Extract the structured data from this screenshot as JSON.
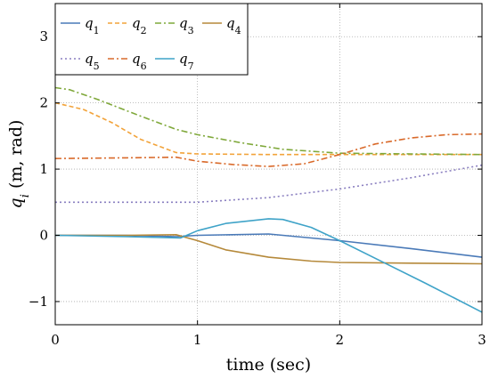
{
  "chart_data": {
    "type": "line",
    "title": "",
    "xlabel": "time (sec)",
    "ylabel": "q_i (m, rad)",
    "ylabel_main": "q",
    "ylabel_sub": "i",
    "ylabel_rest": " (m, rad)",
    "xlim": [
      0,
      3
    ],
    "ylim": [
      -1.35,
      3.5
    ],
    "x_ticks": [
      0,
      1,
      2,
      3
    ],
    "y_ticks": [
      -1,
      0,
      1,
      2,
      3
    ],
    "x_tick_labels": [
      "0",
      "1",
      "2",
      "3"
    ],
    "y_tick_labels": [
      "−1",
      "0",
      "1",
      "2",
      "3"
    ],
    "grid": "dotted",
    "legend_position": "top-left",
    "series": [
      {
        "name": "q1",
        "label_main": "q",
        "label_sub": "1",
        "color": "#4a7ab8",
        "dash": "solid",
        "x": [
          0,
          0.5,
          0.85,
          1.0,
          1.5,
          2.0,
          2.5,
          3.0
        ],
        "y": [
          0,
          0,
          -0.02,
          0.0,
          0.02,
          -0.08,
          -0.2,
          -0.33
        ]
      },
      {
        "name": "q2",
        "label_main": "q",
        "label_sub": "2",
        "color": "#f2a33a",
        "dash": "dashed",
        "x": [
          0,
          0.2,
          0.4,
          0.6,
          0.85,
          1.0,
          1.5,
          2.0,
          2.5,
          3.0
        ],
        "y": [
          2.0,
          1.9,
          1.7,
          1.45,
          1.25,
          1.23,
          1.22,
          1.22,
          1.22,
          1.22
        ]
      },
      {
        "name": "q3",
        "label_main": "q",
        "label_sub": "3",
        "color": "#7fa83a",
        "dash": "dashdot",
        "x": [
          0,
          0.1,
          0.3,
          0.6,
          0.85,
          1.0,
          1.3,
          1.6,
          2.0,
          2.5,
          3.0
        ],
        "y": [
          2.23,
          2.2,
          2.05,
          1.8,
          1.6,
          1.52,
          1.4,
          1.3,
          1.24,
          1.23,
          1.22
        ]
      },
      {
        "name": "q4",
        "label_main": "q",
        "label_sub": "4",
        "color": "#b5893a",
        "dash": "solid",
        "x": [
          0,
          0.5,
          0.85,
          1.0,
          1.2,
          1.5,
          1.8,
          2.0,
          2.5,
          3.0
        ],
        "y": [
          0,
          0,
          0.01,
          -0.08,
          -0.22,
          -0.33,
          -0.39,
          -0.41,
          -0.42,
          -0.43
        ]
      },
      {
        "name": "q5",
        "label_main": "q",
        "label_sub": "5",
        "color": "#8a7fc0",
        "dash": "dotted",
        "x": [
          0,
          0.5,
          1.0,
          1.5,
          2.0,
          2.5,
          3.0
        ],
        "y": [
          0.5,
          0.5,
          0.5,
          0.57,
          0.7,
          0.87,
          1.06
        ]
      },
      {
        "name": "q6",
        "label_main": "q",
        "label_sub": "6",
        "color": "#d96a2b",
        "dash": "dashdot",
        "x": [
          0,
          0.5,
          0.85,
          1.0,
          1.25,
          1.5,
          1.75,
          2.0,
          2.25,
          2.5,
          2.75,
          3.0
        ],
        "y": [
          1.16,
          1.17,
          1.18,
          1.12,
          1.07,
          1.04,
          1.08,
          1.22,
          1.38,
          1.47,
          1.52,
          1.53
        ]
      },
      {
        "name": "q7",
        "label_main": "q",
        "label_sub": "7",
        "color": "#3fa3c8",
        "dash": "solid",
        "x": [
          0,
          0.5,
          0.88,
          1.0,
          1.2,
          1.5,
          1.6,
          1.8,
          2.0,
          2.3,
          2.6,
          3.0
        ],
        "y": [
          0,
          -0.02,
          -0.04,
          0.07,
          0.18,
          0.25,
          0.24,
          0.12,
          -0.08,
          -0.4,
          -0.72,
          -1.16
        ]
      }
    ]
  }
}
